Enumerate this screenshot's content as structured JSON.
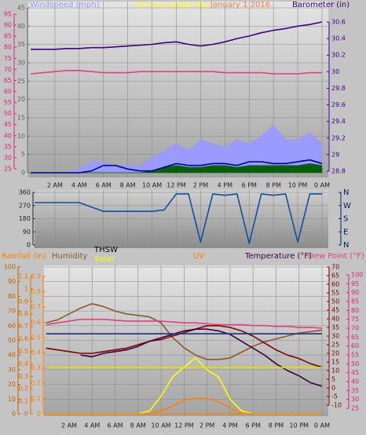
{
  "chart_data": [
    {
      "type": "line",
      "title": "24 hour graph day",
      "date": "January 1 2016",
      "grid": true,
      "x": [
        0,
        1,
        2,
        3,
        4,
        5,
        6,
        7,
        8,
        9,
        10,
        11,
        12,
        13,
        14,
        15,
        16,
        17,
        18,
        19,
        20,
        21,
        22,
        23,
        24
      ],
      "xlim": [
        0,
        24
      ],
      "xticks": [
        {
          "value": 2,
          "label": "2 AM"
        },
        {
          "value": 4,
          "label": "4 AM"
        },
        {
          "value": 6,
          "label": "6 AM"
        },
        {
          "value": 8,
          "label": "8 AM"
        },
        {
          "value": 10,
          "label": "10 AM"
        },
        {
          "value": 12,
          "label": "12 PM"
        },
        {
          "value": 14,
          "label": "2 PM"
        },
        {
          "value": 16,
          "label": "4 PM"
        },
        {
          "value": 18,
          "label": "6 PM"
        },
        {
          "value": 20,
          "label": "8 PM"
        },
        {
          "value": 22,
          "label": "10 PM"
        },
        {
          "value": 24,
          "label": "0 AM"
        }
      ],
      "ylim": [
        0,
        45
      ],
      "yticks": [
        0,
        5,
        10,
        15,
        20,
        25,
        30,
        35,
        40,
        45
      ],
      "y_color": "#606060",
      "y2lim": [
        28.8,
        30.6
      ],
      "y2ticks": [
        28.8,
        29,
        29.2,
        29.4,
        29.6,
        29.8,
        30,
        30.2,
        30.4,
        30.6
      ],
      "y2_color": "#400080",
      "y3lim": [
        25,
        95
      ],
      "y3ticks": [
        25,
        30,
        35,
        40,
        45,
        50,
        55,
        60,
        65,
        70,
        75,
        80,
        85,
        90,
        95
      ],
      "y3_color": "#e0207a",
      "series": [
        {
          "name": "Windspeed (mph)",
          "color": "#9a9aff",
          "fill": true,
          "axis": "y",
          "values": [
            0,
            0,
            0,
            0,
            1,
            3,
            3,
            2,
            2,
            2,
            4,
            6,
            8,
            6,
            9,
            8,
            7,
            9,
            8,
            10,
            13,
            9,
            9,
            11,
            8
          ]
        },
        {
          "color": "#006000",
          "fill": true,
          "axis": "y",
          "values": [
            0,
            0,
            0,
            0,
            0,
            0,
            0,
            0,
            0,
            0,
            0.5,
            1.5,
            2,
            1.5,
            1.5,
            2,
            2,
            1.5,
            2,
            2,
            2,
            2,
            2,
            2.5,
            2
          ]
        },
        {
          "color": "#000090",
          "axis": "y",
          "values": [
            0,
            0,
            0,
            0,
            0,
            0.5,
            2,
            2,
            1,
            0.5,
            0.5,
            1.5,
            2.5,
            2,
            2,
            2.5,
            2.5,
            2,
            3,
            3,
            2.5,
            2.5,
            3,
            3.5,
            2.5
          ]
        },
        {
          "color": "#e04080",
          "axis": "y3",
          "values": [
            68,
            68.5,
            69,
            69.5,
            69.5,
            69,
            68.5,
            68.5,
            68.5,
            69,
            69,
            69,
            69,
            69,
            69,
            69,
            68.5,
            68.5,
            68.5,
            68.5,
            68,
            68,
            68,
            68.5,
            68.5
          ]
        },
        {
          "name": "Barometer (in)",
          "color": "#400080",
          "axis": "y2",
          "values": [
            30.27,
            30.27,
            30.27,
            30.28,
            30.28,
            30.29,
            30.29,
            30.3,
            30.31,
            30.32,
            30.33,
            30.35,
            30.36,
            30.33,
            30.31,
            30.33,
            30.36,
            30.4,
            30.43,
            30.47,
            30.5,
            30.52,
            30.55,
            30.57,
            30.6
          ]
        }
      ]
    },
    {
      "type": "line",
      "grid": true,
      "x": [
        0,
        1,
        2,
        3,
        4,
        5,
        6,
        7,
        8,
        9,
        10,
        11,
        12,
        13,
        14,
        15,
        16,
        17,
        18,
        19,
        20,
        21,
        22,
        23,
        24
      ],
      "xlim": [
        0,
        24
      ],
      "ylim": [
        0,
        360
      ],
      "yticks": [
        0,
        90,
        180,
        270,
        360
      ],
      "y_color": "#202020",
      "y2lim": [
        0,
        360
      ],
      "y2ticks": [
        {
          "value": 360,
          "label": "N"
        },
        {
          "value": 270,
          "label": "W"
        },
        {
          "value": 180,
          "label": "S"
        },
        {
          "value": 90,
          "label": "E"
        },
        {
          "value": 0,
          "label": "N"
        }
      ],
      "y2_color": "#002060",
      "series": [
        {
          "color": "#1050a0",
          "axis": "y",
          "values": [
            290,
            290,
            290,
            290,
            290,
            260,
            230,
            230,
            230,
            230,
            230,
            240,
            350,
            350,
            20,
            350,
            340,
            350,
            10,
            350,
            340,
            350,
            20,
            350,
            350
          ]
        }
      ]
    },
    {
      "type": "line",
      "grid": true,
      "x": [
        0,
        1,
        2,
        3,
        4,
        5,
        6,
        7,
        8,
        9,
        10,
        11,
        12,
        13,
        14,
        15,
        16,
        17,
        18,
        19,
        20,
        21,
        22,
        23,
        24
      ],
      "xlim": [
        0,
        24
      ],
      "xticks": [
        {
          "value": 2,
          "label": "2 AM"
        },
        {
          "value": 4,
          "label": "4 AM"
        },
        {
          "value": 6,
          "label": "6 AM"
        },
        {
          "value": 8,
          "label": "8 AM"
        },
        {
          "value": 10,
          "label": "10 AM"
        },
        {
          "value": 12,
          "label": "12 PM"
        },
        {
          "value": 14,
          "label": "2 PM"
        },
        {
          "value": 16,
          "label": "4 PM"
        },
        {
          "value": 18,
          "label": "6 PM"
        },
        {
          "value": 20,
          "label": "8 PM"
        },
        {
          "value": 22,
          "label": "10 PM"
        },
        {
          "value": 24,
          "label": "0 AM"
        }
      ],
      "ylim": [
        0,
        100
      ],
      "yticks": [
        0,
        10,
        20,
        30,
        40,
        50,
        60,
        70,
        80,
        90,
        100
      ],
      "y_color": "#c06000",
      "y2lim": [
        0,
        1.1
      ],
      "y2ticks": [
        0,
        0.1,
        0.2,
        0.3,
        0.4,
        0.5,
        0.6,
        0.7,
        0.8,
        0.9,
        1,
        1.1
      ],
      "y2_color": "#e07000",
      "y3lim": [
        0,
        0.9
      ],
      "y3ticks": [
        0,
        0.1,
        0.2,
        0.3,
        0.4,
        0.5,
        0.6,
        0.7,
        0.8,
        0.9
      ],
      "y3_color": "#ff8000",
      "y4lim": [
        -10,
        70
      ],
      "y4ticks": [
        -10,
        -5,
        0,
        5,
        10,
        15,
        20,
        25,
        30,
        35,
        40,
        45,
        50,
        55,
        60,
        65,
        70
      ],
      "y4_color": "#800000",
      "y5lim": [
        25,
        100
      ],
      "y5ticks": [
        25,
        30,
        35,
        40,
        45,
        50,
        55,
        60,
        65,
        70,
        75,
        80,
        85,
        90,
        95,
        100
      ],
      "y5_color": "#e02070",
      "series": [
        {
          "name": "Rainfall (in)",
          "color": "#ff8000",
          "axis": "y2",
          "values": [
            0,
            0,
            0,
            0,
            0,
            0,
            0,
            0,
            0,
            0,
            0,
            0,
            0,
            0,
            0,
            0,
            0,
            0,
            0,
            0,
            0,
            0,
            0,
            0,
            0
          ]
        },
        {
          "name": "Humidity",
          "color": "#8b5a2b",
          "axis": "y",
          "values": [
            62,
            64,
            68,
            72,
            75,
            73,
            70,
            68,
            67,
            66,
            62,
            52,
            45,
            40,
            37,
            37,
            38,
            42,
            46,
            49,
            51,
            53,
            55,
            56,
            57
          ]
        },
        {
          "name": "THSW",
          "color": "#800000",
          "axis": "y4",
          "values": [
            23,
            22,
            21,
            20,
            20,
            21,
            22,
            23,
            25,
            27,
            28,
            30,
            32,
            34,
            36,
            36,
            35,
            33,
            30,
            26,
            22,
            19,
            17,
            14,
            12
          ]
        },
        {
          "name": "Solar",
          "color": "#ffff00",
          "axis": "y",
          "values": [
            0,
            0,
            0,
            0,
            0,
            0,
            0,
            0,
            0,
            2,
            12,
            25,
            32,
            38,
            30,
            25,
            10,
            2,
            0,
            0,
            0,
            0,
            0,
            0,
            0
          ]
        },
        {
          "name": "UV",
          "color": "#ff8000",
          "axis": "y3",
          "values": [
            0,
            0,
            0,
            0,
            0,
            0,
            0,
            0,
            0,
            0,
            0.02,
            0.05,
            0.09,
            0.1,
            0.1,
            0.08,
            0.04,
            0,
            0,
            0,
            0,
            0,
            0,
            0,
            0
          ]
        },
        {
          "name": "Temperature (°F)",
          "color": "#400040",
          "axis": "y4",
          "values": [
            null,
            null,
            null,
            19,
            18,
            20,
            21,
            22,
            24,
            27,
            29,
            31,
            33,
            34,
            34,
            33,
            31,
            27,
            23,
            19,
            14,
            10,
            7,
            3,
            1
          ]
        },
        {
          "name": "Dew Point (°F)",
          "color": "#e04080",
          "axis": "y5",
          "values": [
            72,
            73,
            74,
            75,
            75,
            75,
            74.5,
            74,
            74,
            74,
            74,
            73.5,
            73,
            73,
            72.5,
            72,
            72,
            72,
            71.5,
            71.5,
            71,
            71,
            70.5,
            70.5,
            70
          ]
        },
        {
          "color": "#203080",
          "axis": "y",
          "values": [
            54.5,
            54.5,
            54.5,
            54.5,
            54.5,
            54.5,
            54.5,
            54.5,
            54.5,
            54.5,
            54.5,
            54.5,
            54.5,
            54.5,
            54.5,
            54.5,
            54.5,
            54.5,
            54.5,
            54.5,
            54.5,
            54.5,
            54.5,
            54.5,
            54.5
          ]
        },
        {
          "color": "#e0e000",
          "axis": "y",
          "values": [
            31.5,
            31.5,
            31.5,
            31.5,
            31.5,
            31.5,
            31.5,
            31.5,
            31.5,
            31.5,
            31.5,
            31.5,
            31.5,
            31.5,
            31.5,
            31.5,
            31.5,
            31.5,
            31.5,
            31.5,
            31.5,
            31.5,
            31.5,
            31.5,
            31.5
          ]
        }
      ]
    }
  ]
}
